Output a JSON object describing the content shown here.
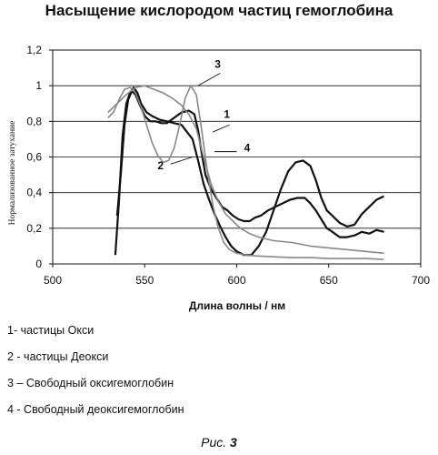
{
  "chart_data": {
    "type": "line",
    "title": "Насыщение кислородом частиц гемоглобина",
    "xlabel": "Длина волны / нм",
    "ylabel": "Нормализованное затухание",
    "xlim": [
      500,
      700
    ],
    "ylim": [
      0,
      1.2
    ],
    "x_ticks": [
      "500",
      "550",
      "600",
      "650",
      "700"
    ],
    "y_ticks": [
      "0",
      "0,2",
      "0,4",
      "0,6",
      "0,8",
      "1",
      "1,2"
    ],
    "grid": "horizontal",
    "series": [
      {
        "id": "1",
        "color": "#111111",
        "points": [
          [
            535,
            0.27
          ],
          [
            537,
            0.5
          ],
          [
            539,
            0.78
          ],
          [
            541,
            0.92
          ],
          [
            543,
            0.97
          ],
          [
            545,
            0.95
          ],
          [
            547,
            0.9
          ],
          [
            550,
            0.83
          ],
          [
            553,
            0.8
          ],
          [
            556,
            0.8
          ],
          [
            559,
            0.79
          ],
          [
            562,
            0.79
          ],
          [
            566,
            0.82
          ],
          [
            570,
            0.85
          ],
          [
            574,
            0.86
          ],
          [
            577,
            0.84
          ],
          [
            579,
            0.75
          ],
          [
            581,
            0.62
          ],
          [
            583,
            0.5
          ],
          [
            586,
            0.42
          ],
          [
            589,
            0.37
          ],
          [
            592,
            0.32
          ],
          [
            595,
            0.3
          ],
          [
            598,
            0.27
          ],
          [
            601,
            0.25
          ],
          [
            604,
            0.24
          ],
          [
            607,
            0.24
          ],
          [
            610,
            0.26
          ],
          [
            613,
            0.27
          ],
          [
            617,
            0.3
          ],
          [
            621,
            0.32
          ],
          [
            625,
            0.34
          ],
          [
            629,
            0.36
          ],
          [
            633,
            0.37
          ],
          [
            637,
            0.37
          ],
          [
            640,
            0.34
          ],
          [
            643,
            0.3
          ],
          [
            646,
            0.25
          ],
          [
            649,
            0.2
          ],
          [
            652,
            0.18
          ],
          [
            656,
            0.15
          ],
          [
            660,
            0.15
          ],
          [
            664,
            0.16
          ],
          [
            668,
            0.18
          ],
          [
            672,
            0.17
          ],
          [
            676,
            0.19
          ],
          [
            680,
            0.18
          ]
        ]
      },
      {
        "id": "2",
        "color": "#111111",
        "points": [
          [
            534,
            0.05
          ],
          [
            536,
            0.35
          ],
          [
            538,
            0.72
          ],
          [
            540,
            0.9
          ],
          [
            542,
            0.96
          ],
          [
            544,
            0.99
          ],
          [
            546,
            0.96
          ],
          [
            548,
            0.9
          ],
          [
            551,
            0.85
          ],
          [
            554,
            0.83
          ],
          [
            558,
            0.81
          ],
          [
            562,
            0.8
          ],
          [
            566,
            0.79
          ],
          [
            570,
            0.78
          ],
          [
            573,
            0.74
          ],
          [
            576,
            0.7
          ],
          [
            579,
            0.58
          ],
          [
            582,
            0.45
          ],
          [
            585,
            0.36
          ],
          [
            588,
            0.28
          ],
          [
            591,
            0.21
          ],
          [
            594,
            0.15
          ],
          [
            597,
            0.1
          ],
          [
            600,
            0.07
          ],
          [
            604,
            0.05
          ],
          [
            608,
            0.05
          ],
          [
            612,
            0.1
          ],
          [
            616,
            0.18
          ],
          [
            620,
            0.3
          ],
          [
            624,
            0.42
          ],
          [
            628,
            0.52
          ],
          [
            632,
            0.57
          ],
          [
            636,
            0.58
          ],
          [
            640,
            0.55
          ],
          [
            643,
            0.47
          ],
          [
            646,
            0.37
          ],
          [
            649,
            0.3
          ],
          [
            652,
            0.27
          ],
          [
            656,
            0.23
          ],
          [
            660,
            0.21
          ],
          [
            664,
            0.22
          ],
          [
            668,
            0.28
          ],
          [
            672,
            0.32
          ],
          [
            676,
            0.36
          ],
          [
            680,
            0.38
          ]
        ]
      },
      {
        "id": "3",
        "color": "#888888",
        "points": [
          [
            530,
            0.82
          ],
          [
            533,
            0.85
          ],
          [
            536,
            0.92
          ],
          [
            539,
            0.98
          ],
          [
            542,
            0.99
          ],
          [
            545,
            0.96
          ],
          [
            548,
            0.88
          ],
          [
            551,
            0.78
          ],
          [
            554,
            0.68
          ],
          [
            557,
            0.61
          ],
          [
            560,
            0.57
          ],
          [
            563,
            0.58
          ],
          [
            566,
            0.65
          ],
          [
            569,
            0.78
          ],
          [
            572,
            0.93
          ],
          [
            575,
            1.0
          ],
          [
            578,
            0.95
          ],
          [
            581,
            0.75
          ],
          [
            584,
            0.52
          ],
          [
            587,
            0.33
          ],
          [
            590,
            0.2
          ],
          [
            593,
            0.12
          ],
          [
            596,
            0.08
          ],
          [
            600,
            0.06
          ],
          [
            605,
            0.05
          ],
          [
            610,
            0.045
          ],
          [
            620,
            0.04
          ],
          [
            630,
            0.035
          ],
          [
            640,
            0.035
          ],
          [
            650,
            0.03
          ],
          [
            660,
            0.03
          ],
          [
            670,
            0.03
          ],
          [
            680,
            0.025
          ]
        ]
      },
      {
        "id": "4",
        "color": "#888888",
        "points": [
          [
            530,
            0.85
          ],
          [
            535,
            0.9
          ],
          [
            540,
            0.95
          ],
          [
            545,
            0.99
          ],
          [
            550,
            1.0
          ],
          [
            555,
            0.98
          ],
          [
            560,
            0.96
          ],
          [
            565,
            0.93
          ],
          [
            570,
            0.89
          ],
          [
            574,
            0.84
          ],
          [
            578,
            0.76
          ],
          [
            582,
            0.6
          ],
          [
            586,
            0.45
          ],
          [
            590,
            0.35
          ],
          [
            594,
            0.28
          ],
          [
            598,
            0.24
          ],
          [
            602,
            0.2
          ],
          [
            607,
            0.17
          ],
          [
            612,
            0.15
          ],
          [
            620,
            0.13
          ],
          [
            630,
            0.12
          ],
          [
            640,
            0.1
          ],
          [
            650,
            0.09
          ],
          [
            660,
            0.08
          ],
          [
            670,
            0.07
          ],
          [
            680,
            0.06
          ]
        ]
      }
    ],
    "curve_labels": [
      "1",
      "2",
      "3",
      "4"
    ]
  },
  "legend": [
    "1- частицы Окси",
    "2 - частицы Деокси",
    "3 – Свободный оксигемоглобин",
    "4 - Свободный деоксигемоглобин"
  ],
  "caption_prefix": "Рис. ",
  "caption_number": "3"
}
